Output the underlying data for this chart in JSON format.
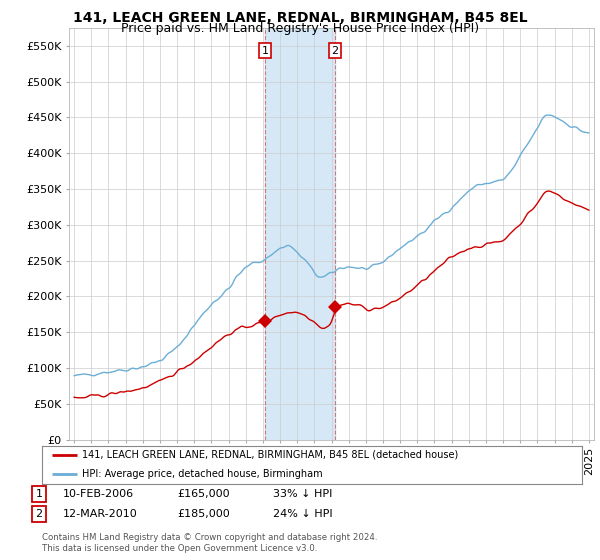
{
  "title": "141, LEACH GREEN LANE, REDNAL, BIRMINGHAM, B45 8EL",
  "subtitle": "Price paid vs. HM Land Registry's House Price Index (HPI)",
  "ylim": [
    0,
    575000
  ],
  "yticks": [
    0,
    50000,
    100000,
    150000,
    200000,
    250000,
    300000,
    350000,
    400000,
    450000,
    500000,
    550000
  ],
  "ytick_labels": [
    "£0",
    "£50K",
    "£100K",
    "£150K",
    "£200K",
    "£250K",
    "£300K",
    "£350K",
    "£400K",
    "£450K",
    "£500K",
    "£550K"
  ],
  "sale1_date": 2006.12,
  "sale1_price": 165000,
  "sale1_label": "1",
  "sale2_date": 2010.21,
  "sale2_price": 185000,
  "sale2_label": "2",
  "hpi_color": "#6baed6",
  "sale_color": "#cc0000",
  "shade_color": "#d6e8f5",
  "legend_entry1": "141, LEACH GREEN LANE, REDNAL, BIRMINGHAM, B45 8EL (detached house)",
  "legend_entry2": "HPI: Average price, detached house, Birmingham",
  "table_row1": [
    "1",
    "10-FEB-2006",
    "£165,000",
    "33% ↓ HPI"
  ],
  "table_row2": [
    "2",
    "12-MAR-2010",
    "£185,000",
    "24% ↓ HPI"
  ],
  "footnote": "Contains HM Land Registry data © Crown copyright and database right 2024.\nThis data is licensed under the Open Government Licence v3.0.",
  "background_color": "#ffffff",
  "grid_color": "#cccccc",
  "title_fontsize": 10,
  "subtitle_fontsize": 9,
  "tick_fontsize": 8,
  "xstart": 1995,
  "xend": 2025
}
